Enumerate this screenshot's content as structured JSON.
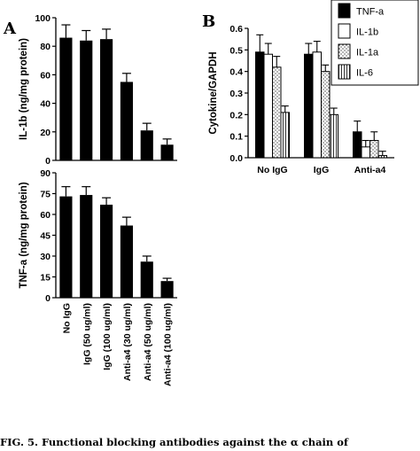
{
  "panels": {
    "a": "A",
    "b": "B"
  },
  "caption": "FIG. 5. Functional blocking antibodies against the α chain of",
  "chart_data": [
    {
      "id": "A-top",
      "type": "bar",
      "ylabel": "IL-1b (ng/mg protein)",
      "ylim": [
        0,
        100
      ],
      "yticks": [
        0,
        20,
        40,
        60,
        80,
        100
      ],
      "categories": [
        "No IgG",
        "IgG (50 ug/ml)",
        "IgG (100 ug/ml)",
        "Anti-a4 (30 ug/ml)",
        "Anti-a4 (50 ug/ml)",
        "Anti-a4 (100 ug/ml)"
      ],
      "values": [
        86,
        84,
        85,
        55,
        21,
        11
      ],
      "errors": [
        9,
        7,
        7,
        6,
        5,
        4
      ]
    },
    {
      "id": "A-bottom",
      "type": "bar",
      "ylabel": "TNF-a (ng/mg protein)",
      "ylim": [
        0,
        90
      ],
      "yticks": [
        0,
        15,
        30,
        45,
        60,
        75,
        90
      ],
      "categories": [
        "No IgG",
        "IgG (50 ug/ml)",
        "IgG (100 ug/ml)",
        "Anti-a4 (30 ug/ml)",
        "Anti-a4 (50 ug/ml)",
        "Anti-a4 (100 ug/ml)"
      ],
      "values": [
        73,
        74,
        67,
        52,
        26,
        12
      ],
      "errors": [
        7,
        6,
        5,
        6,
        4,
        2
      ]
    },
    {
      "id": "B",
      "type": "bar",
      "ylabel": "Cytokine/GAPDH",
      "ylim": [
        0,
        0.6
      ],
      "yticks": [
        "0.0",
        "0.1",
        "0.2",
        "0.3",
        "0.4",
        "0.5",
        "0.6"
      ],
      "categories": [
        "No IgG",
        "IgG",
        "Anti-a4"
      ],
      "series": [
        {
          "name": "TNF-a",
          "pattern": "solid",
          "values": [
            0.49,
            0.48,
            0.12
          ],
          "errors": [
            0.08,
            0.05,
            0.05
          ]
        },
        {
          "name": "IL-1b",
          "pattern": "white",
          "values": [
            0.48,
            0.49,
            0.05
          ],
          "errors": [
            0.05,
            0.05,
            0.03
          ]
        },
        {
          "name": "IL-1a",
          "pattern": "dots",
          "values": [
            0.42,
            0.4,
            0.08
          ],
          "errors": [
            0.05,
            0.03,
            0.04
          ]
        },
        {
          "name": "IL-6",
          "pattern": "stripes",
          "values": [
            0.21,
            0.2,
            0.01
          ],
          "errors": [
            0.03,
            0.03,
            0.02
          ]
        }
      ],
      "legend": "top-right"
    }
  ]
}
